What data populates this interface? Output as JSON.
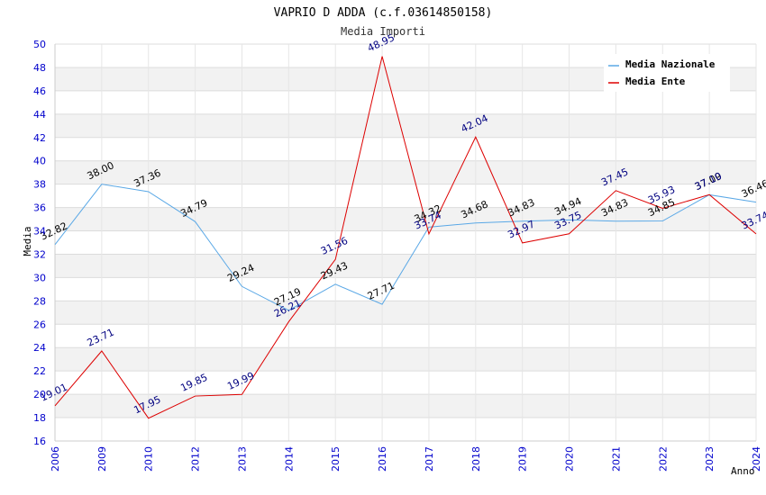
{
  "chart_data": {
    "type": "line",
    "title": "VAPRIO D ADDA (c.f.03614850158)",
    "subtitle": "Media Importi",
    "xlabel": "Anno",
    "ylabel": "Media",
    "ylim": [
      16,
      50
    ],
    "yticks": [
      "16",
      "18",
      "20",
      "22",
      "24",
      "26",
      "28",
      "30",
      "32",
      "34",
      "36",
      "38",
      "40",
      "42",
      "44",
      "46",
      "48",
      "50"
    ],
    "categories": [
      "2006",
      "2009",
      "2010",
      "2012",
      "2013",
      "2014",
      "2015",
      "2016",
      "2017",
      "2018",
      "2019",
      "2020",
      "2021",
      "2022",
      "2023",
      "2024"
    ],
    "grid": true,
    "legend_position": "top-right",
    "series": [
      {
        "name": "Media Nazionale",
        "color": "#5aa8e6",
        "label_color": "#000000",
        "values": [
          32.82,
          38.0,
          37.36,
          34.79,
          29.24,
          27.19,
          29.43,
          27.71,
          34.32,
          34.68,
          34.83,
          34.94,
          34.83,
          34.85,
          37.09,
          36.46
        ],
        "labels": [
          "32.82",
          "38.00",
          "37.36",
          "34.79",
          "29.24",
          "27.19",
          "29.43",
          "27.71",
          "34.32",
          "34.68",
          "34.83",
          "34.94",
          "34.83",
          "34.85",
          "37.09",
          "36.46"
        ]
      },
      {
        "name": "Media Ente",
        "color": "#dd0000",
        "label_color": "#000080",
        "values": [
          19.01,
          23.71,
          17.95,
          19.85,
          19.99,
          26.21,
          31.56,
          48.95,
          33.74,
          42.04,
          32.97,
          33.75,
          37.45,
          35.93,
          37.1,
          33.74
        ],
        "labels": [
          "19.01",
          "23.71",
          "17.95",
          "19.85",
          "19.99",
          "26.21",
          "31.56",
          "48.95",
          "33.74",
          "42.04",
          "32.97",
          "33.75",
          "37.45",
          "35.93",
          "37.10",
          "33.74"
        ]
      }
    ]
  }
}
